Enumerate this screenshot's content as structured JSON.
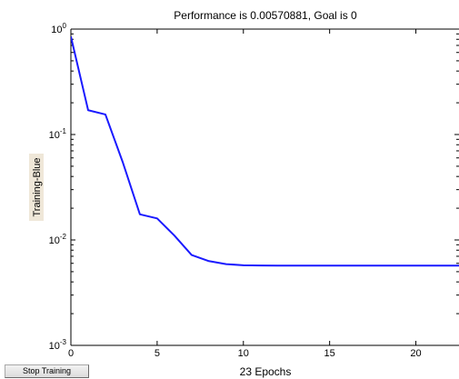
{
  "controls": {
    "stop_training_label": "Stop Training"
  },
  "colors": {
    "line": "#1a1aff",
    "axis": "#000000",
    "label_bg": "#efe7d8"
  },
  "chart_data": {
    "type": "line",
    "title": "Performance is 0.00570881, Goal is 0",
    "xlabel": "23 Epochs",
    "ylabel": "Training-Blue",
    "yscale": "log",
    "xlim": [
      0,
      22.5
    ],
    "ylim": [
      0.001,
      1
    ],
    "grid": false,
    "xticks": [
      0,
      5,
      10,
      15,
      20
    ],
    "xtick_labels": [
      "0",
      "5",
      "10",
      "15",
      "20"
    ],
    "yticks": [
      0.001,
      0.01,
      0.1,
      1
    ],
    "ytick_labels": [
      {
        "base": "10",
        "exp": "-3"
      },
      {
        "base": "10",
        "exp": "-2"
      },
      {
        "base": "10",
        "exp": "-1"
      },
      {
        "base": "10",
        "exp": "0"
      }
    ],
    "series": [
      {
        "x": [
          0,
          1,
          2,
          3,
          4,
          5,
          6,
          7,
          8,
          9,
          10,
          11,
          12,
          13,
          14,
          15,
          16,
          17,
          18,
          19,
          20,
          21,
          22,
          23
        ],
        "y": [
          0.85,
          0.17,
          0.155,
          0.055,
          0.0175,
          0.016,
          0.011,
          0.0072,
          0.0063,
          0.0059,
          0.00575,
          0.00572,
          0.00571,
          0.00571,
          0.00571,
          0.00571,
          0.00571,
          0.00571,
          0.00571,
          0.00571,
          0.00571,
          0.00571,
          0.00571,
          0.00570881
        ]
      }
    ]
  }
}
